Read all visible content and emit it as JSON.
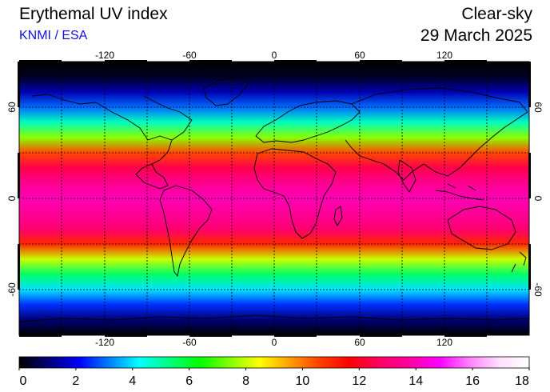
{
  "title": "Erythemal UV index",
  "credit": "KNMI / ESA",
  "sky_condition": "Clear-sky",
  "date": "29 March 2025",
  "lon_ticks": [
    "-120",
    "-60",
    "0",
    "60",
    "120"
  ],
  "lat_ticks": [
    "60",
    "0",
    "-60"
  ],
  "colorbar": {
    "ticks": [
      "0",
      "2",
      "4",
      "6",
      "8",
      "10",
      "12",
      "14",
      "16",
      "18"
    ],
    "min": 0,
    "max": 18,
    "colors": [
      "#000000",
      "#00007a",
      "#0000ff",
      "#007fff",
      "#00ffff",
      "#00ff80",
      "#00ff00",
      "#80ff00",
      "#ffff00",
      "#ffa000",
      "#ff4000",
      "#ff0000",
      "#ff0060",
      "#ff00a0",
      "#ff00ff",
      "#ff80ff",
      "#ffe0ff",
      "#ffffff"
    ]
  },
  "uv_profile": {
    "lat": [
      90,
      80,
      70,
      60,
      50,
      40,
      30,
      20,
      10,
      0,
      -10,
      -20,
      -30,
      -40,
      -50,
      -60,
      -70,
      -80,
      -90
    ],
    "uvi": [
      0,
      0.3,
      1.5,
      3,
      4.8,
      7.5,
      10.5,
      12.5,
      13.5,
      14,
      13.6,
      13,
      11,
      8,
      5.5,
      4,
      2.5,
      1,
      0
    ]
  },
  "projection": "equirectangular",
  "grid": true,
  "coastlines": true
}
